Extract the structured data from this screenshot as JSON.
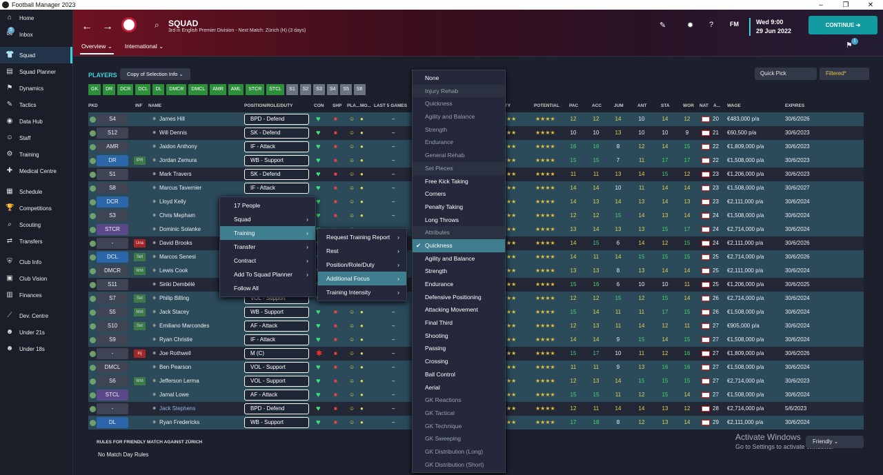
{
  "window": {
    "title": "Football Manager 2023",
    "controls": [
      "–",
      "❐",
      "✕"
    ]
  },
  "sidebar": {
    "items": [
      {
        "label": "Home",
        "icon": "home-icon",
        "glyph": "⌂"
      },
      {
        "label": "Inbox",
        "icon": "inbox-icon",
        "glyph": "✉",
        "badge": "5"
      },
      {
        "label": "Squad",
        "icon": "shirt-icon",
        "glyph": "👕",
        "active": true
      },
      {
        "label": "Squad Planner",
        "icon": "planner-icon",
        "glyph": "▤"
      },
      {
        "label": "Dynamics",
        "icon": "dynamics-icon",
        "glyph": "⚑"
      },
      {
        "label": "Tactics",
        "icon": "tactics-icon",
        "glyph": "✎"
      },
      {
        "label": "Data Hub",
        "icon": "datahub-icon",
        "glyph": "◉"
      },
      {
        "label": "Staff",
        "icon": "staff-icon",
        "glyph": "☺"
      },
      {
        "label": "Training",
        "icon": "training-icon",
        "glyph": "⚙"
      },
      {
        "label": "Medical Centre",
        "icon": "medical-icon",
        "glyph": "✚"
      },
      {
        "label": "Schedule",
        "icon": "schedule-icon",
        "glyph": "▦"
      },
      {
        "label": "Competitions",
        "icon": "trophy-icon",
        "glyph": "🏆"
      },
      {
        "label": "Scouting",
        "icon": "scouting-icon",
        "glyph": "⌕"
      },
      {
        "label": "Transfers",
        "icon": "transfers-icon",
        "glyph": "⇄"
      },
      {
        "label": "Club Info",
        "icon": "club-info-icon",
        "glyph": "⛨"
      },
      {
        "label": "Club Vision",
        "icon": "club-vision-icon",
        "glyph": "▣"
      },
      {
        "label": "Finances",
        "icon": "finances-icon",
        "glyph": "▥"
      },
      {
        "label": "Dev. Centre",
        "icon": "dev-centre-icon",
        "glyph": "⟋"
      },
      {
        "label": "Under 21s",
        "icon": "under21-icon",
        "glyph": "☻"
      },
      {
        "label": "Under 18s",
        "icon": "under18-icon",
        "glyph": "☻"
      }
    ]
  },
  "header": {
    "title": "SQUAD",
    "subtitle": "3rd in English Premier Division - Next Match: Zürich (H) (3 days)",
    "tabs": [
      "Overview ⌄",
      "International ⌄"
    ],
    "fm": "FM",
    "day": "Wed 9:00",
    "date": "29 Jun 2022",
    "continue": "CONTINUE ➔",
    "notif": "1"
  },
  "toolbar": {
    "players": "PLAYERS",
    "copy": "Copy of Selection Info ⌄",
    "quickpick": "Quick Pick",
    "filtered": "Filtered*"
  },
  "position_filters": [
    {
      "label": "GK",
      "on": true
    },
    {
      "label": "DR",
      "on": true
    },
    {
      "label": "DCR",
      "on": true
    },
    {
      "label": "DCL",
      "on": true
    },
    {
      "label": "DL",
      "on": true
    },
    {
      "label": "DMCR",
      "on": true
    },
    {
      "label": "DMCL",
      "on": true
    },
    {
      "label": "AMR",
      "on": true
    },
    {
      "label": "AML",
      "on": true
    },
    {
      "label": "STCR",
      "on": true
    },
    {
      "label": "STCL",
      "on": true
    },
    {
      "label": "S1",
      "on": false
    },
    {
      "label": "S2",
      "on": false
    },
    {
      "label": "S3",
      "on": false
    },
    {
      "label": "S4",
      "on": false
    },
    {
      "label": "S5",
      "on": false
    },
    {
      "label": "S6",
      "on": false
    }
  ],
  "columns": {
    "pkd": "PKD",
    "inf": "INF",
    "name": "NAME",
    "position": "POSITION/ROLE/DUTY",
    "con": "CON",
    "shp": "SHP",
    "pla": "PLA...",
    "mo": "MO...",
    "last5": "LAST 5 GAMES",
    "ability": "ITY",
    "potential": "POTENTIAL",
    "pac": "PAC",
    "acc": "ACC",
    "jum": "JUM",
    "ant": "ANT",
    "sta": "STA",
    "wor": "WOR",
    "nat": "NAT",
    "age": "A...",
    "wage": "WAGE",
    "expires": "EXPIRES"
  },
  "players": [
    {
      "pos": "S4",
      "inf": "",
      "name": "James Hill",
      "role": "BPD - Defend",
      "pac": "12",
      "acc": "12",
      "jum": "14",
      "ant": "10",
      "sta": "14",
      "wor": "12",
      "age": "20",
      "wage": "€483,000 p/a",
      "expires": "30/6/2026",
      "style": "alt"
    },
    {
      "pos": "S12",
      "inf": "",
      "name": "Will Dennis",
      "role": "SK - Defend",
      "pac": "10",
      "acc": "10",
      "jum": "13",
      "ant": "10",
      "sta": "10",
      "wor": "9",
      "age": "21",
      "wage": "€60,500 p/a",
      "expires": "30/6/2023",
      "style": "dark"
    },
    {
      "pos": "AMR",
      "inf": "",
      "name": "Jaidon Anthony",
      "role": "IF - Attack",
      "pac": "16",
      "acc": "16",
      "jum": "8",
      "ant": "12",
      "sta": "14",
      "wor": "15",
      "age": "22",
      "wage": "€1,809,000 p/a",
      "expires": "30/6/2023",
      "style": "alt"
    },
    {
      "pos": "DR",
      "inf": "IPR",
      "name": "Jordan Zemura",
      "role": "WB - Support",
      "pac": "15",
      "acc": "15",
      "jum": "7",
      "ant": "11",
      "sta": "17",
      "wor": "17",
      "age": "22",
      "wage": "€1,508,000 p/a",
      "expires": "30/6/2023",
      "style": "alt",
      "badge": "b"
    },
    {
      "pos": "S1",
      "inf": "",
      "name": "Mark Travers",
      "role": "SK - Defend",
      "pac": "11",
      "acc": "11",
      "jum": "13",
      "ant": "14",
      "sta": "15",
      "wor": "12",
      "age": "23",
      "wage": "€1,206,000 p/a",
      "expires": "30/6/2023",
      "style": "dark"
    },
    {
      "pos": "S8",
      "inf": "",
      "name": "Marcus Tavernier",
      "role": "IF - Attack",
      "pac": "14",
      "acc": "14",
      "jum": "10",
      "ant": "11",
      "sta": "14",
      "wor": "14",
      "age": "23",
      "wage": "€1,508,000 p/a",
      "expires": "30/6/2027",
      "style": "alt"
    },
    {
      "pos": "DCR",
      "inf": "",
      "name": "Lloyd Kelly",
      "role": "",
      "pac": "14",
      "acc": "13",
      "jum": "14",
      "ant": "13",
      "sta": "14",
      "wor": "13",
      "age": "23",
      "wage": "€2,111,000 p/a",
      "expires": "30/6/2024",
      "style": "alt",
      "badge": "b"
    },
    {
      "pos": "S3",
      "inf": "",
      "name": "Chris Mepham",
      "role": "",
      "pac": "12",
      "acc": "12",
      "jum": "15",
      "ant": "14",
      "sta": "13",
      "wor": "14",
      "age": "24",
      "wage": "€1,508,000 p/a",
      "expires": "30/6/2024",
      "style": "alt"
    },
    {
      "pos": "STCR",
      "inf": "",
      "name": "Dominic Solanke",
      "role": "",
      "pac": "13",
      "acc": "14",
      "jum": "13",
      "ant": "13",
      "sta": "15",
      "wor": "17",
      "age": "24",
      "wage": "€2,714,000 p/a",
      "expires": "30/6/2024",
      "style": "alt",
      "badge": "p"
    },
    {
      "pos": "-",
      "inf": "Una",
      "name": "David Brooks",
      "role": "",
      "pac": "14",
      "acc": "15",
      "jum": "6",
      "ant": "14",
      "sta": "12",
      "wor": "15",
      "age": "24",
      "wage": "€2,111,000 p/a",
      "expires": "30/6/2026",
      "style": "dark",
      "infc": "red"
    },
    {
      "pos": "DCL",
      "inf": "Set",
      "name": "Marcos Senesi",
      "role": "",
      "pac": "14",
      "acc": "11",
      "jum": "14",
      "ant": "15",
      "sta": "15",
      "wor": "15",
      "age": "25",
      "wage": "€2,714,000 p/a",
      "expires": "30/6/2026",
      "style": "alt",
      "badge": "b",
      "infc": "green"
    },
    {
      "pos": "DMCR",
      "inf": "Wnt",
      "name": "Lewis Cook",
      "role": "",
      "pac": "13",
      "acc": "13",
      "jum": "8",
      "ant": "13",
      "sta": "14",
      "wor": "14",
      "age": "25",
      "wage": "€2,111,000 p/a",
      "expires": "30/6/2024",
      "style": "alt",
      "infc": "green"
    },
    {
      "pos": "S11",
      "inf": "",
      "name": "Siriki Dembélé",
      "role": "",
      "pac": "15",
      "acc": "16",
      "jum": "6",
      "ant": "10",
      "sta": "10",
      "wor": "11",
      "age": "25",
      "wage": "€1,206,000 p/a",
      "expires": "30/6/2025",
      "style": "dark"
    },
    {
      "pos": "S7",
      "inf": "Set",
      "name": "Philip Billing",
      "role": "VOL - Support",
      "pac": "12",
      "acc": "12",
      "jum": "15",
      "ant": "12",
      "sta": "15",
      "wor": "14",
      "age": "26",
      "wage": "€2,714,000 p/a",
      "expires": "30/6/2024",
      "style": "alt",
      "infc": "green"
    },
    {
      "pos": "S5",
      "inf": "Wnt",
      "name": "Jack Stacey",
      "role": "WB - Support",
      "pac": "15",
      "acc": "14",
      "jum": "11",
      "ant": "11",
      "sta": "17",
      "wor": "15",
      "age": "26",
      "wage": "€1,508,000 p/a",
      "expires": "30/6/2024",
      "style": "alt",
      "infc": "green"
    },
    {
      "pos": "S10",
      "inf": "Set",
      "name": "Emiliano Marcondes",
      "role": "AF - Attack",
      "pac": "12",
      "acc": "13",
      "jum": "11",
      "ant": "14",
      "sta": "12",
      "wor": "11",
      "age": "27",
      "wage": "€905,000 p/a",
      "expires": "30/6/2024",
      "style": "alt",
      "infc": "green"
    },
    {
      "pos": "S9",
      "inf": "",
      "name": "Ryan Christie",
      "role": "IF - Attack",
      "pac": "14",
      "acc": "14",
      "jum": "9",
      "ant": "15",
      "sta": "14",
      "wor": "15",
      "age": "27",
      "wage": "€1,508,000 p/a",
      "expires": "30/6/2024",
      "style": "alt"
    },
    {
      "pos": "-",
      "inf": "Inj",
      "name": "Joe Rothwell",
      "role": "M (C)",
      "pac": "15",
      "acc": "17",
      "jum": "10",
      "ant": "11",
      "sta": "12",
      "wor": "16",
      "age": "27",
      "wage": "€1,809,000 p/a",
      "expires": "30/6/2026",
      "style": "dark",
      "infc": "red"
    },
    {
      "pos": "DMCL",
      "inf": "",
      "name": "Ben Pearson",
      "role": "VOL - Support",
      "pac": "11",
      "acc": "11",
      "jum": "9",
      "ant": "13",
      "sta": "16",
      "wor": "16",
      "age": "27",
      "wage": "€1,508,000 p/a",
      "expires": "30/6/2024",
      "style": "alt"
    },
    {
      "pos": "S6",
      "inf": "Wnt",
      "name": "Jefferson Lerma",
      "role": "VOL - Support",
      "pac": "12",
      "acc": "13",
      "jum": "14",
      "ant": "15",
      "sta": "15",
      "wor": "15",
      "age": "27",
      "wage": "€2,714,000 p/a",
      "expires": "30/6/2023",
      "style": "alt",
      "infc": "green"
    },
    {
      "pos": "STCL",
      "inf": "",
      "name": "Jamal Lowe",
      "role": "AF - Attack",
      "pac": "15",
      "acc": "15",
      "jum": "11",
      "ant": "12",
      "sta": "15",
      "wor": "14",
      "age": "27",
      "wage": "€1,508,000 p/a",
      "expires": "30/6/2024",
      "style": "alt",
      "badge": "p"
    },
    {
      "pos": "-",
      "inf": "",
      "name": "Jack Stephens",
      "role": "BPD - Defend",
      "pac": "12",
      "acc": "11",
      "jum": "14",
      "ant": "14",
      "sta": "13",
      "wor": "12",
      "age": "28",
      "wage": "€2,714,000 p/a",
      "expires": "5/6/2023",
      "style": "dark"
    },
    {
      "pos": "DL",
      "inf": "",
      "name": "Ryan Fredericks",
      "role": "WB - Support",
      "pac": "17",
      "acc": "18",
      "jum": "8",
      "ant": "12",
      "sta": "13",
      "wor": "14",
      "age": "29",
      "wage": "€2,111,000 p/a",
      "expires": "30/6/2024",
      "style": "alt",
      "badge": "b"
    }
  ],
  "context_menu": {
    "people": "17 People",
    "items": [
      {
        "label": "Squad",
        "arrow": "›"
      },
      {
        "label": "Training",
        "arrow": "›"
      },
      {
        "label": "Transfer",
        "arrow": "›"
      },
      {
        "label": "Contract",
        "arrow": "›"
      },
      {
        "label": "Add To Squad Planner",
        "arrow": "›"
      },
      {
        "label": "Follow All",
        "arrow": ""
      }
    ]
  },
  "training_submenu": {
    "items": [
      {
        "label": "Request Training Report",
        "arrow": "›"
      },
      {
        "label": "Rest",
        "arrow": "›"
      },
      {
        "label": "Position/Role/Duty",
        "arrow": "›"
      },
      {
        "label": "Additional Focus",
        "arrow": "›"
      },
      {
        "label": "Training Intensity",
        "arrow": "›"
      }
    ]
  },
  "focus_menu": {
    "items": [
      {
        "label": "None",
        "type": "normal"
      },
      {
        "label": "Injury Rehab",
        "type": "hdr"
      },
      {
        "label": "Quickness",
        "type": "dis"
      },
      {
        "label": "Agility and Balance",
        "type": "dis"
      },
      {
        "label": "Strength",
        "type": "dis"
      },
      {
        "label": "Endurance",
        "type": "dis"
      },
      {
        "label": "General Rehab",
        "type": "dis"
      },
      {
        "label": "Set Pieces",
        "type": "hdr"
      },
      {
        "label": "Free Kick Taking",
        "type": "normal"
      },
      {
        "label": "Corners",
        "type": "normal"
      },
      {
        "label": "Penalty Taking",
        "type": "normal"
      },
      {
        "label": "Long Throws",
        "type": "normal"
      },
      {
        "label": "Attributes",
        "type": "hdr"
      },
      {
        "label": "Quickness",
        "type": "hl"
      },
      {
        "label": "Agility and Balance",
        "type": "normal"
      },
      {
        "label": "Strength",
        "type": "normal"
      },
      {
        "label": "Endurance",
        "type": "normal"
      },
      {
        "label": "Defensive Positioning",
        "type": "normal"
      },
      {
        "label": "Attacking Movement",
        "type": "normal"
      },
      {
        "label": "Final Third",
        "type": "normal"
      },
      {
        "label": "Shooting",
        "type": "normal"
      },
      {
        "label": "Passing",
        "type": "normal"
      },
      {
        "label": "Crossing",
        "type": "normal"
      },
      {
        "label": "Ball Control",
        "type": "normal"
      },
      {
        "label": "Aerial",
        "type": "normal"
      },
      {
        "label": "GK Reactions",
        "type": "dis"
      },
      {
        "label": "GK Tactical",
        "type": "dis"
      },
      {
        "label": "GK Technique",
        "type": "dis"
      },
      {
        "label": "GK Sweeping",
        "type": "dis"
      },
      {
        "label": "GK Distribution (Long)",
        "type": "dis"
      },
      {
        "label": "GK Distribution (Short)",
        "type": "dis"
      }
    ]
  },
  "footer": {
    "rules": "RULES FOR FRIENDLY MATCH AGAINST ZÜRICH",
    "no_rules": "No Match Day Rules",
    "friendly": "Friendly ⌄",
    "activate_title": "Activate Windows",
    "activate_sub": "Go to Settings to activate Windows."
  },
  "colors": {
    "accent": "#3fd0e0",
    "green_filter": "#2e8f3a",
    "highlight": "#3f7e8e",
    "continue": "#119a9f"
  }
}
